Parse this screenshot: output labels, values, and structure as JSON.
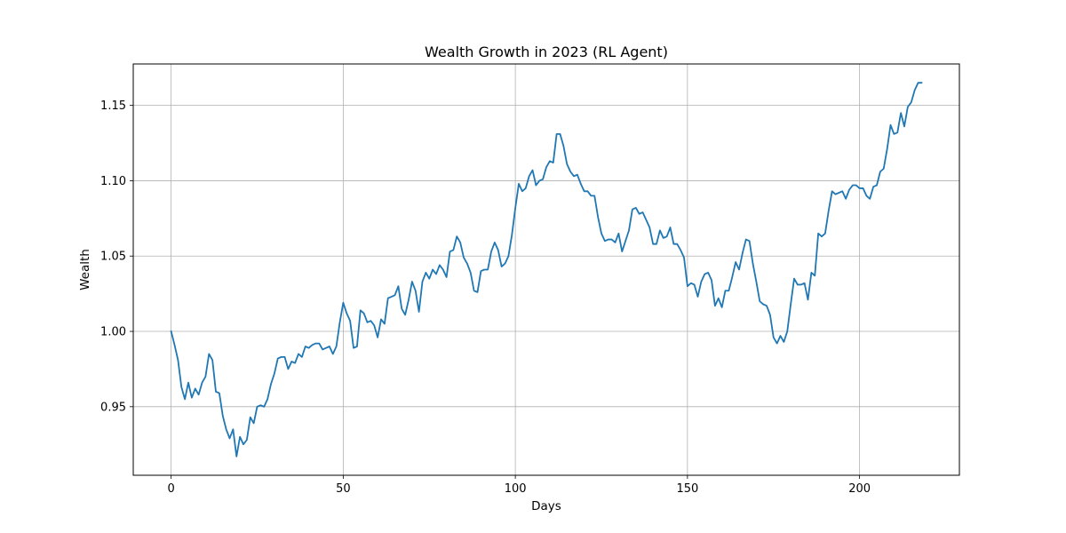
{
  "chart_data": {
    "type": "line",
    "title": "Wealth Growth in 2023 (RL Agent)",
    "xlabel": "Days",
    "ylabel": "Wealth",
    "xlim": [
      -11,
      229
    ],
    "ylim": [
      0.9045,
      1.1775
    ],
    "xticks": [
      0,
      50,
      100,
      150,
      200
    ],
    "yticks": [
      0.95,
      1.0,
      1.05,
      1.1,
      1.15
    ],
    "ytick_labels": [
      "0.95",
      "1.00",
      "1.05",
      "1.10",
      "1.15"
    ],
    "grid": true,
    "line_color": "#1f77b4",
    "series": [
      {
        "x": [
          0,
          1,
          2,
          3,
          4,
          5,
          6,
          7,
          8,
          9,
          10,
          11,
          12,
          13,
          14,
          15,
          16,
          17,
          18,
          19,
          20,
          21,
          22,
          23,
          24,
          25,
          26,
          27,
          28,
          29,
          30,
          31,
          32,
          33,
          34,
          35,
          36,
          37,
          38,
          39,
          40,
          41,
          42,
          43,
          44,
          45,
          46,
          47,
          48,
          49,
          50,
          51,
          52,
          53,
          54,
          55,
          56,
          57,
          58,
          59,
          60,
          61,
          62,
          63,
          64,
          65,
          66,
          67,
          68,
          69,
          70,
          71,
          72,
          73,
          74,
          75,
          76,
          77,
          78,
          79,
          80,
          81,
          82,
          83,
          84,
          85,
          86,
          87,
          88,
          89,
          90,
          91,
          92,
          93,
          94,
          95,
          96,
          97,
          98,
          99,
          100,
          101,
          102,
          103,
          104,
          105,
          106,
          107,
          108,
          109,
          110,
          111,
          112,
          113,
          114,
          115,
          116,
          117,
          118,
          119,
          120,
          121,
          122,
          123,
          124,
          125,
          126,
          127,
          128,
          129,
          130,
          131,
          132,
          133,
          134,
          135,
          136,
          137,
          138,
          139,
          140,
          141,
          142,
          143,
          144,
          145,
          146,
          147,
          148,
          149,
          150,
          151,
          152,
          153,
          154,
          155,
          156,
          157,
          158,
          159,
          160,
          161,
          162,
          163,
          164,
          165,
          166,
          167,
          168,
          169,
          170,
          171,
          172,
          173,
          174,
          175,
          176,
          177,
          178,
          179,
          180,
          181,
          182,
          183,
          184,
          185,
          186,
          187,
          188,
          189,
          190,
          191,
          192,
          193,
          194,
          195,
          196,
          197,
          198,
          199,
          200,
          201,
          202,
          203,
          204,
          205,
          206,
          207,
          208,
          209,
          210,
          211,
          212,
          213,
          214,
          215,
          216,
          217,
          218
        ],
        "values": [
          1.0,
          0.991,
          0.981,
          0.963,
          0.955,
          0.966,
          0.956,
          0.962,
          0.958,
          0.966,
          0.97,
          0.985,
          0.981,
          0.96,
          0.959,
          0.944,
          0.935,
          0.929,
          0.935,
          0.917,
          0.93,
          0.925,
          0.928,
          0.943,
          0.939,
          0.95,
          0.951,
          0.95,
          0.955,
          0.965,
          0.972,
          0.982,
          0.983,
          0.983,
          0.975,
          0.98,
          0.979,
          0.985,
          0.983,
          0.99,
          0.989,
          0.991,
          0.992,
          0.992,
          0.988,
          0.989,
          0.99,
          0.985,
          0.99,
          1.006,
          1.019,
          1.012,
          1.007,
          0.989,
          0.99,
          1.014,
          1.012,
          1.006,
          1.007,
          1.004,
          0.996,
          1.008,
          1.005,
          1.022,
          1.023,
          1.024,
          1.03,
          1.015,
          1.011,
          1.021,
          1.033,
          1.027,
          1.013,
          1.033,
          1.039,
          1.035,
          1.041,
          1.038,
          1.044,
          1.041,
          1.036,
          1.053,
          1.054,
          1.063,
          1.059,
          1.049,
          1.045,
          1.039,
          1.027,
          1.026,
          1.04,
          1.041,
          1.041,
          1.053,
          1.059,
          1.054,
          1.043,
          1.045,
          1.05,
          1.064,
          1.082,
          1.098,
          1.093,
          1.095,
          1.103,
          1.107,
          1.097,
          1.1,
          1.101,
          1.109,
          1.113,
          1.112,
          1.131,
          1.131,
          1.123,
          1.111,
          1.106,
          1.103,
          1.104,
          1.098,
          1.093,
          1.093,
          1.09,
          1.09,
          1.076,
          1.065,
          1.06,
          1.061,
          1.061,
          1.059,
          1.065,
          1.053,
          1.06,
          1.067,
          1.081,
          1.082,
          1.078,
          1.079,
          1.074,
          1.069,
          1.058,
          1.058,
          1.067,
          1.062,
          1.063,
          1.069,
          1.058,
          1.058,
          1.054,
          1.049,
          1.03,
          1.032,
          1.031,
          1.023,
          1.033,
          1.038,
          1.039,
          1.034,
          1.017,
          1.022,
          1.016,
          1.027,
          1.027,
          1.036,
          1.046,
          1.041,
          1.052,
          1.061,
          1.06,
          1.045,
          1.033,
          1.02,
          1.018,
          1.017,
          1.011,
          0.996,
          0.992,
          0.997,
          0.993,
          1.0,
          1.018,
          1.035,
          1.031,
          1.031,
          1.032,
          1.021,
          1.039,
          1.037,
          1.065,
          1.063,
          1.065,
          1.08,
          1.093,
          1.091,
          1.092,
          1.093,
          1.088,
          1.094,
          1.097,
          1.097,
          1.095,
          1.095,
          1.09,
          1.088,
          1.096,
          1.097,
          1.106,
          1.108,
          1.121,
          1.137,
          1.131,
          1.132,
          1.145,
          1.136,
          1.149,
          1.152,
          1.16,
          1.165,
          1.165
        ]
      }
    ]
  }
}
